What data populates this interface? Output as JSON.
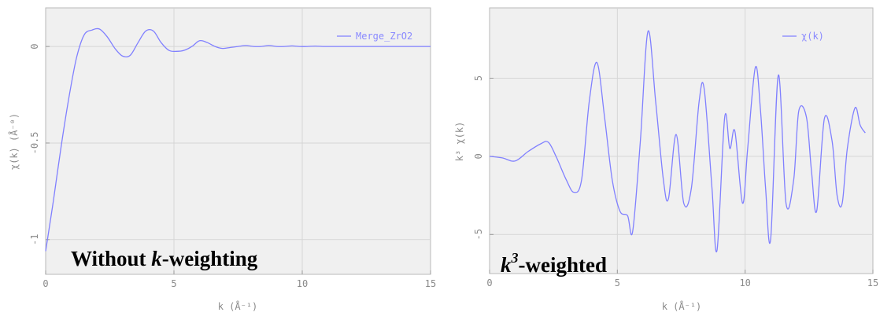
{
  "chart_data": [
    {
      "type": "line",
      "xlabel": "k (Å⁻¹)",
      "ylabel": "χ(k) (Å⁻⁰)",
      "xlim": [
        0,
        15
      ],
      "ylim": [
        -1.18,
        0.2
      ],
      "xticks": [
        "0",
        "5",
        "10",
        "15"
      ],
      "yticks": [
        "0",
        "-0.5",
        "-1"
      ],
      "xtick_values": [
        0,
        5,
        10,
        15
      ],
      "ytick_values": [
        0,
        -0.5,
        -1
      ],
      "grid": true,
      "legend_position": "top-right",
      "series_color": "#8080ff",
      "caption": {
        "text1": "Without ",
        "italic": "k",
        "text2": "-weighting"
      },
      "series": [
        {
          "name": "Merge_ZrO2",
          "x": [
            0,
            0.3,
            0.6,
            0.9,
            1.2,
            1.5,
            1.8,
            2.1,
            2.4,
            2.7,
            3.0,
            3.3,
            3.6,
            3.9,
            4.2,
            4.5,
            4.8,
            5.1,
            5.4,
            5.7,
            6.0,
            6.3,
            6.6,
            6.9,
            7.2,
            7.5,
            7.8,
            8.1,
            8.4,
            8.7,
            9.0,
            9.3,
            9.6,
            9.9,
            10.2,
            10.5,
            10.8,
            11.1,
            11.4,
            11.7,
            12.0,
            12.3,
            12.6,
            12.9,
            13.2,
            13.5,
            13.8,
            14.1,
            14.4,
            14.7,
            15.0
          ],
          "y": [
            -1.06,
            -0.8,
            -0.52,
            -0.27,
            -0.06,
            0.06,
            0.085,
            0.09,
            0.05,
            -0.01,
            -0.05,
            -0.045,
            0.02,
            0.08,
            0.08,
            0.02,
            -0.02,
            -0.025,
            -0.02,
            0.0,
            0.03,
            0.02,
            0.0,
            -0.01,
            -0.005,
            0.0,
            0.005,
            0.0,
            0.0,
            0.005,
            0.0,
            0.0,
            0.003,
            0.0,
            0.0,
            0.002,
            0.0,
            0.0,
            0.0,
            0.0,
            0.0,
            0.0,
            0.0,
            0.0,
            0.0,
            0.0,
            0.0,
            0.0,
            0.0,
            0.0,
            0.0
          ]
        }
      ]
    },
    {
      "type": "line",
      "xlabel": "k (Å⁻¹)",
      "ylabel": "k³ χ(k)",
      "xlim": [
        0,
        15
      ],
      "ylim": [
        -7.5,
        9.5
      ],
      "xticks": [
        "0",
        "5",
        "10",
        "15"
      ],
      "yticks": [
        "5",
        "0",
        "-5"
      ],
      "xtick_values": [
        0,
        5,
        10,
        15
      ],
      "ytick_values": [
        5,
        0,
        -5
      ],
      "grid": true,
      "legend_position": "top-right",
      "series_color": "#8080ff",
      "caption": {
        "italic": "k",
        "sup": "3",
        "text2": "-weighted"
      },
      "series": [
        {
          "name": "χ(k)",
          "x": [
            0,
            0.5,
            1.0,
            1.5,
            2.0,
            2.3,
            2.6,
            3.0,
            3.3,
            3.6,
            3.9,
            4.2,
            4.5,
            4.8,
            5.1,
            5.4,
            5.6,
            5.9,
            6.2,
            6.5,
            6.8,
            7.0,
            7.3,
            7.6,
            7.9,
            8.2,
            8.4,
            8.7,
            8.9,
            9.2,
            9.4,
            9.6,
            9.9,
            10.1,
            10.4,
            10.6,
            10.8,
            11.0,
            11.3,
            11.6,
            11.9,
            12.1,
            12.4,
            12.6,
            12.8,
            13.1,
            13.4,
            13.6,
            13.8,
            14.0,
            14.3,
            14.5,
            14.7
          ],
          "y": [
            0.0,
            -0.1,
            -0.3,
            0.3,
            0.8,
            0.9,
            0.0,
            -1.5,
            -2.3,
            -1.5,
            3.5,
            6.0,
            2.5,
            -1.5,
            -3.5,
            -3.8,
            -4.8,
            1.0,
            8.0,
            3.5,
            -1.5,
            -2.7,
            1.4,
            -3.0,
            -2.0,
            3.5,
            4.3,
            -2.0,
            -6.0,
            2.5,
            0.5,
            1.6,
            -3.0,
            0.5,
            5.7,
            3.0,
            -2.0,
            -5.3,
            5.2,
            -3.0,
            -1.5,
            2.9,
            2.5,
            -1.0,
            -3.5,
            2.4,
            1.0,
            -2.5,
            -3.0,
            0.5,
            3.1,
            2.0,
            1.5
          ]
        }
      ]
    }
  ]
}
